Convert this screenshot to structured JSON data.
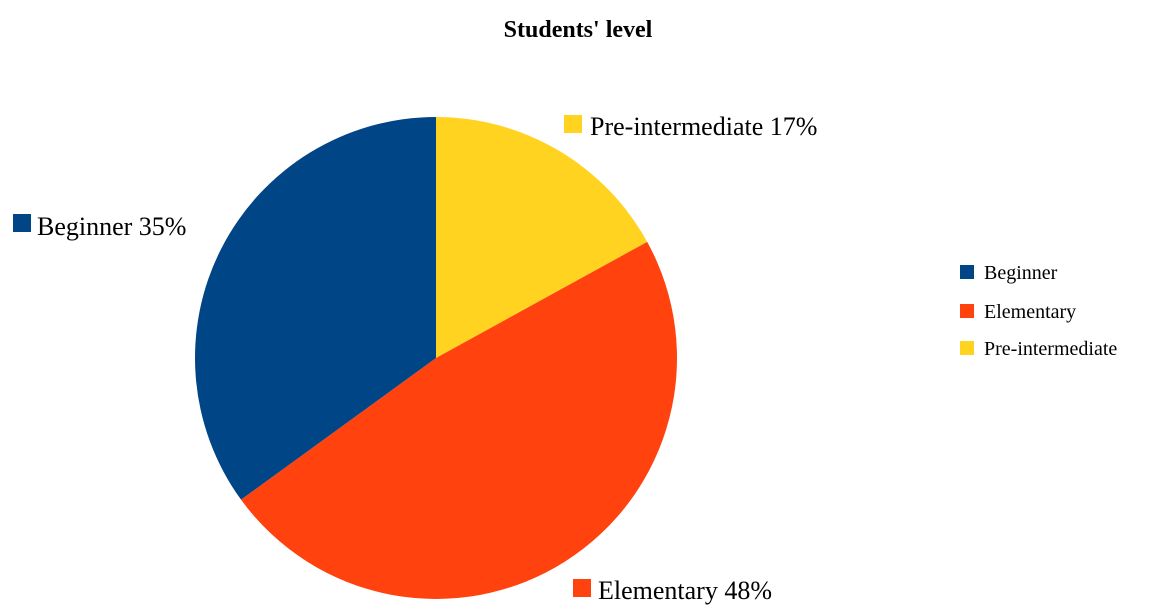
{
  "chart_data": {
    "type": "pie",
    "title": "Students' level",
    "categories": [
      "Beginner",
      "Elementary",
      "Pre-intermediate"
    ],
    "values": [
      35,
      48,
      17
    ],
    "value_unit": "%",
    "colors": [
      "#004586",
      "#ff420e",
      "#ffd320"
    ],
    "slice_labels": [
      "Beginner 35%",
      "Elementary 48%",
      "Pre-intermediate 17%"
    ],
    "legend": {
      "placement": "right",
      "entries": [
        "Beginner",
        "Elementary",
        "Pre-intermediate"
      ]
    },
    "start_angle_deg": 0,
    "direction": "clockwise"
  }
}
